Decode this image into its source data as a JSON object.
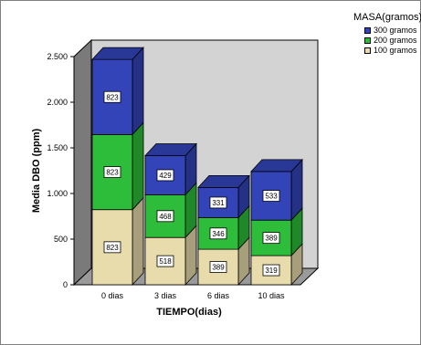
{
  "chart_data": {
    "type": "bar",
    "stacked": true,
    "style": "3d",
    "categories": [
      "0 dias",
      "3 dias",
      "6 dias",
      "10 dias"
    ],
    "series": [
      {
        "name": "100 gramos",
        "values": [
          823,
          518,
          389,
          319
        ],
        "color": "#e8dcac"
      },
      {
        "name": "200 gramos",
        "values": [
          823,
          468,
          346,
          389
        ],
        "color": "#2ebd3b"
      },
      {
        "name": "300 gramos",
        "values": [
          823,
          429,
          331,
          533
        ],
        "color": "#3244b8"
      }
    ],
    "xlabel": "TIEMPO(dias)",
    "ylabel": "Media DBO (ppm)",
    "ylim": [
      0,
      2500
    ],
    "yticks": [
      0,
      500,
      1000,
      1500,
      2000,
      2500
    ],
    "ytick_labels": [
      "0",
      "500",
      "1.000",
      "1.500",
      "2.000",
      "2.500"
    ],
    "legend_title": "MASA(gramos)",
    "legend_position": "top-right",
    "legend_order": [
      "300 gramos",
      "200 gramos",
      "100 gramos"
    ],
    "grid": false,
    "background_color": "#d3d3d3",
    "floor_color": "#9a9a9a"
  }
}
